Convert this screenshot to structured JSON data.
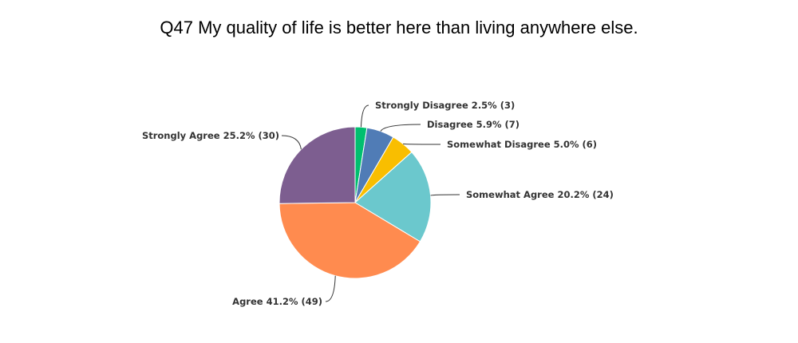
{
  "chart_data": {
    "type": "pie",
    "title": "Q47 My quality of life is better here than living anywhere else.",
    "slices": [
      {
        "label": "Strongly Disagree",
        "percent": 2.5,
        "count": 3,
        "color": "#00bf6f",
        "text": "Strongly Disagree 2.5% (3)"
      },
      {
        "label": "Disagree",
        "percent": 5.9,
        "count": 7,
        "color": "#507cb6",
        "text": "Disagree 5.9% (7)"
      },
      {
        "label": "Somewhat Disagree",
        "percent": 5.0,
        "count": 6,
        "color": "#f9be00",
        "text": "Somewhat Disagree 5.0% (6)"
      },
      {
        "label": "Somewhat Agree",
        "percent": 20.2,
        "count": 24,
        "color": "#6bc8cd",
        "text": "Somewhat Agree 20.2% (24)"
      },
      {
        "label": "Agree",
        "percent": 41.2,
        "count": 49,
        "color": "#ff8b4f",
        "text": "Agree 41.2% (49)"
      },
      {
        "label": "Strongly Agree",
        "percent": 25.2,
        "count": 30,
        "color": "#7d5e90",
        "text": "Strongly Agree 25.2% (30)"
      }
    ]
  }
}
